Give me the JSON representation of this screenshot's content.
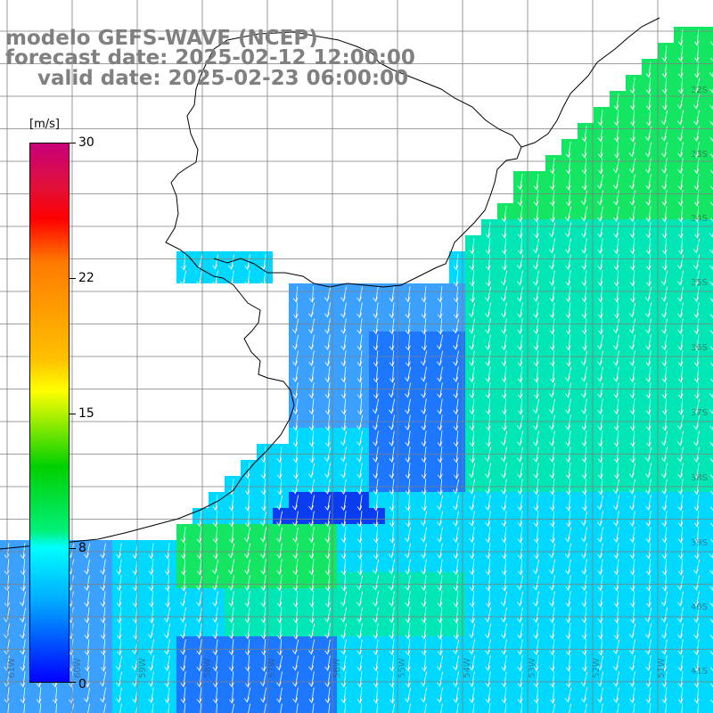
{
  "titles": {
    "line1": "modelo GEFS-WAVE (NCEP)",
    "line2": "forecast date: 2025-02-12 12:00:00",
    "line3": "valid date: 2025-02-23 06:00:00"
  },
  "colorbar": {
    "unit": "[m/s]",
    "ticks": [
      "30",
      "22",
      "15",
      "8",
      "0"
    ],
    "colors": [
      "#c8007a",
      "#ff0000",
      "#ff7a00",
      "#ffff00",
      "#00d000",
      "#00ffff",
      "#00aaff",
      "#0000ff"
    ]
  },
  "latitude_labels": [
    "32S",
    "33S",
    "34S",
    "35S",
    "36S",
    "37S",
    "38S",
    "39S",
    "40S",
    "41S"
  ],
  "longitude_labels": [
    "61W",
    "60W",
    "59W",
    "58W",
    "57W",
    "56W",
    "55W",
    "54W",
    "53W",
    "52W",
    "51W"
  ],
  "colors": {
    "land": "#ffffff",
    "coastline": "#000000",
    "grid": "#7f7f7f",
    "arrows": "#ffffff",
    "deep_blue": "#0a3cf0",
    "mid_blue": "#1e78ff",
    "light_blue": "#3ca0ff",
    "cyan": "#00d8ff",
    "teal": "#00e6b4",
    "green": "#14e664"
  }
}
